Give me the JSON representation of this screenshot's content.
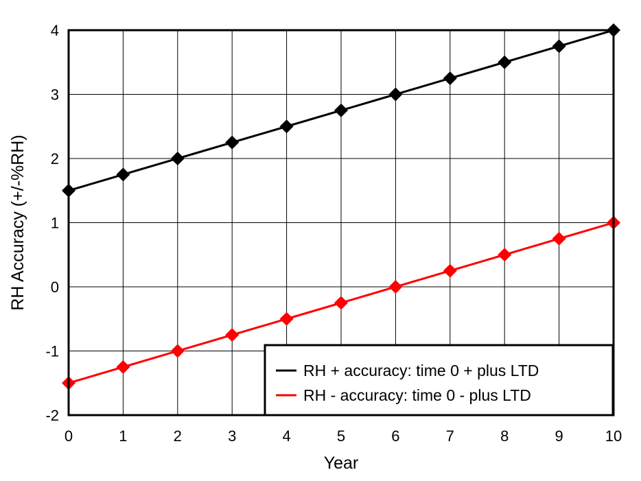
{
  "chart_data": {
    "type": "line",
    "title": "",
    "xlabel": "Year",
    "ylabel": "RH Accuracy (+/-%RH)",
    "x": [
      0,
      1,
      2,
      3,
      4,
      5,
      6,
      7,
      8,
      9,
      10
    ],
    "xlim": [
      0,
      10
    ],
    "ylim": [
      -2,
      4
    ],
    "xticks": [
      "0",
      "1",
      "2",
      "3",
      "4",
      "5",
      "6",
      "7",
      "8",
      "9",
      "10"
    ],
    "yticks": [
      "-2",
      "-1",
      "0",
      "1",
      "2",
      "3",
      "4"
    ],
    "grid": true,
    "legend_position": "bottom-right",
    "marker": "diamond",
    "series": [
      {
        "name": "RH + accuracy: time 0 + plus LTD",
        "color": "#000000",
        "values": [
          1.5,
          1.75,
          2.0,
          2.25,
          2.5,
          2.75,
          3.0,
          3.25,
          3.5,
          3.75,
          4.0
        ]
      },
      {
        "name": "RH - accuracy: time 0 - plus LTD",
        "color": "#ff0000",
        "values": [
          -1.5,
          -1.25,
          -1.0,
          -0.75,
          -0.5,
          -0.25,
          0.0,
          0.25,
          0.5,
          0.75,
          1.0
        ]
      }
    ]
  }
}
